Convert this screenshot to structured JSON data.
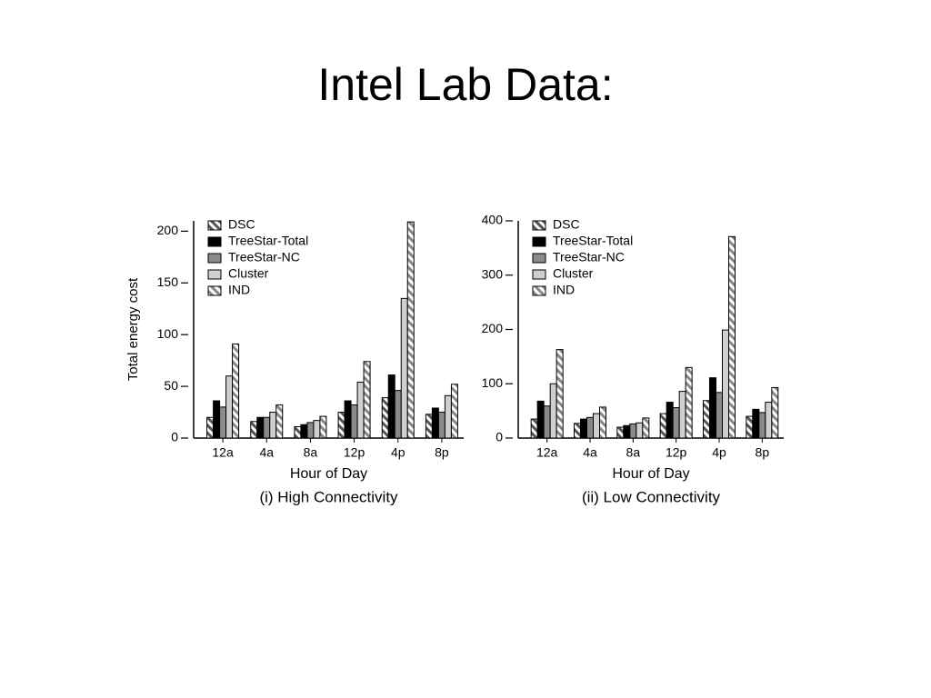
{
  "title": "Intel Lab Data:",
  "chart_data": [
    {
      "type": "bar",
      "ylabel": "Total energy cost",
      "xlabel": "Hour of Day",
      "caption": "(i) High Connectivity",
      "categories": [
        "12a",
        "4a",
        "8a",
        "12p",
        "4p",
        "8p"
      ],
      "series": [
        {
          "name": "DSC",
          "color": "#555555",
          "hatch": true,
          "values": [
            20,
            16,
            11,
            25,
            39,
            23
          ]
        },
        {
          "name": "TreeStar-Total",
          "color": "#000000",
          "hatch": false,
          "values": [
            36,
            20,
            13,
            36,
            61,
            29
          ]
        },
        {
          "name": "TreeStar-NC",
          "color": "#8a8a8a",
          "hatch": false,
          "values": [
            30,
            20,
            15,
            32,
            46,
            25
          ]
        },
        {
          "name": "Cluster",
          "color": "#cfcfcf",
          "hatch": false,
          "values": [
            60,
            25,
            17,
            54,
            135,
            41
          ]
        },
        {
          "name": "IND",
          "color": "#ffffff",
          "hatch": true,
          "values": [
            91,
            32,
            21,
            74,
            209,
            52
          ]
        }
      ],
      "ylim": [
        0,
        210
      ],
      "yticks": [
        0,
        50,
        100,
        150,
        200
      ],
      "legend": "top-left"
    },
    {
      "type": "bar",
      "xlabel": "Hour of Day",
      "caption": "(ii) Low Connectivity",
      "categories": [
        "12a",
        "4a",
        "8a",
        "12p",
        "4p",
        "8p"
      ],
      "series": [
        {
          "name": "DSC",
          "color": "#555555",
          "hatch": true,
          "values": [
            35,
            27,
            20,
            45,
            69,
            40
          ]
        },
        {
          "name": "TreeStar-Total",
          "color": "#000000",
          "hatch": false,
          "values": [
            68,
            35,
            23,
            66,
            111,
            53
          ]
        },
        {
          "name": "TreeStar-NC",
          "color": "#8a8a8a",
          "hatch": false,
          "values": [
            59,
            38,
            26,
            56,
            84,
            47
          ]
        },
        {
          "name": "Cluster",
          "color": "#cfcfcf",
          "hatch": false,
          "values": [
            100,
            45,
            28,
            86,
            199,
            66
          ]
        },
        {
          "name": "IND",
          "color": "#ffffff",
          "hatch": true,
          "values": [
            163,
            57,
            37,
            130,
            371,
            93
          ]
        }
      ],
      "ylim": [
        0,
        400
      ],
      "yticks": [
        0,
        100,
        200,
        300,
        400
      ],
      "legend": "top-left"
    }
  ]
}
